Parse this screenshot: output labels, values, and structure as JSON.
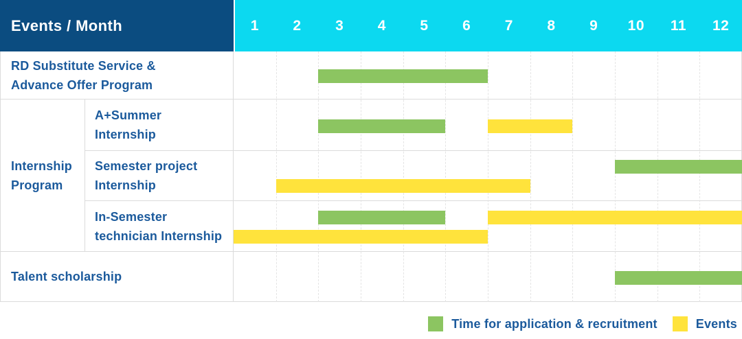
{
  "header": {
    "corner_label": "Events / Month"
  },
  "group_column": {
    "label": "Internship Program",
    "lines": [
      "Internship",
      "Program"
    ]
  },
  "colors": {
    "header_bg": "#0B4C80",
    "month_strip_bg": "#0CD9F0",
    "label_text": "#1B5A9C",
    "bar_green": "#8CC561",
    "bar_yellow": "#FFE33C"
  },
  "chart_data": {
    "type": "gantt",
    "unit": "month",
    "months": [
      "1",
      "2",
      "3",
      "4",
      "5",
      "6",
      "7",
      "8",
      "9",
      "10",
      "11",
      "12"
    ],
    "series_legend": [
      {
        "id": "application",
        "label": "Time for application & recruitment",
        "color": "#8CC561"
      },
      {
        "id": "event",
        "label": "Events",
        "color": "#FFE33C"
      }
    ],
    "rows": [
      {
        "label": "RD Substitute Service & Advance Offer Program",
        "label_lines": [
          "RD Substitute Service &",
          "Advance Offer Program"
        ],
        "group": "",
        "bars": [
          {
            "series": "application",
            "start_month": 3,
            "end_month": 6,
            "line": "single"
          }
        ]
      },
      {
        "label": "A+Summer Internship",
        "label_lines": [
          "A+Summer",
          "Internship"
        ],
        "group": "Internship Program",
        "bars": [
          {
            "series": "application",
            "start_month": 3,
            "end_month": 5,
            "line": "single"
          },
          {
            "series": "event",
            "start_month": 7,
            "end_month": 8,
            "line": "single"
          }
        ]
      },
      {
        "label": "Semester project Internship",
        "label_lines": [
          "Semester project",
          "Internship"
        ],
        "group": "Internship Program",
        "bars": [
          {
            "series": "application",
            "start_month": 10,
            "end_month": 12,
            "line": "top"
          },
          {
            "series": "event",
            "start_month": 2,
            "end_month": 7,
            "line": "bottom"
          }
        ]
      },
      {
        "label": "In-Semester technician Internship",
        "label_lines": [
          "In-Semester",
          "technician Internship"
        ],
        "group": "Internship Program",
        "bars": [
          {
            "series": "application",
            "start_month": 3,
            "end_month": 5,
            "line": "top"
          },
          {
            "series": "event",
            "start_month": 7,
            "end_month": 12,
            "line": "top"
          },
          {
            "series": "event",
            "start_month": 1,
            "end_month": 6,
            "line": "bottom"
          }
        ]
      },
      {
        "label": "Talent scholarship",
        "label_lines": [
          "Talent scholarship"
        ],
        "group": "",
        "bars": [
          {
            "series": "application",
            "start_month": 10,
            "end_month": 12,
            "line": "single"
          }
        ]
      }
    ]
  }
}
